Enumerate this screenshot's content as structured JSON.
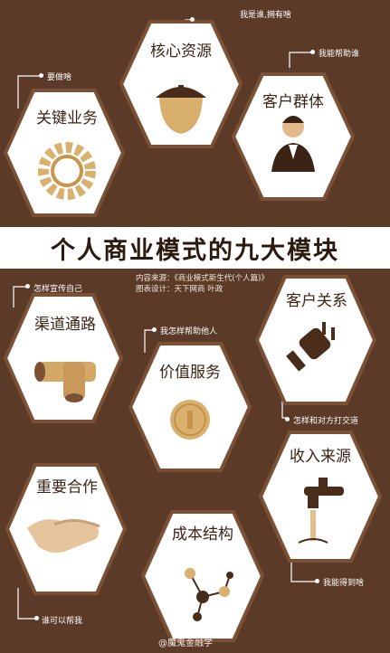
{
  "title": "个人商业模式的九大模块",
  "source_label": "内容来源：《商业模式新生代(个人篇)》",
  "design_label": "图表设计：天下网商 叶政",
  "watermark": "@魔鬼金融学",
  "blocks": {
    "key_resources": {
      "title": "核心资源",
      "note": "我是谁,拥有啥"
    },
    "key_activities": {
      "title": "关键业务",
      "note": "要做啥"
    },
    "customer_segments": {
      "title": "客户群体",
      "note": "我能帮助谁"
    },
    "channels": {
      "title": "渠道通路",
      "note": "怎样宣传自己"
    },
    "value_proposition": {
      "title": "价值服务",
      "note": "我怎样帮助他人"
    },
    "customer_relationships": {
      "title": "客户关系",
      "note": "怎样和对方打交道"
    },
    "key_partners": {
      "title": "重要合作",
      "note": "谁可以帮我"
    },
    "cost_structure": {
      "title": "成本结构",
      "note": ""
    },
    "revenue_streams": {
      "title": "收入来源",
      "note": "我能得到啥"
    }
  },
  "colors": {
    "background": "#5b3a27",
    "hex_fill": "#ffffff",
    "banner": "#ffffff",
    "text_dark": "#3b2415"
  }
}
